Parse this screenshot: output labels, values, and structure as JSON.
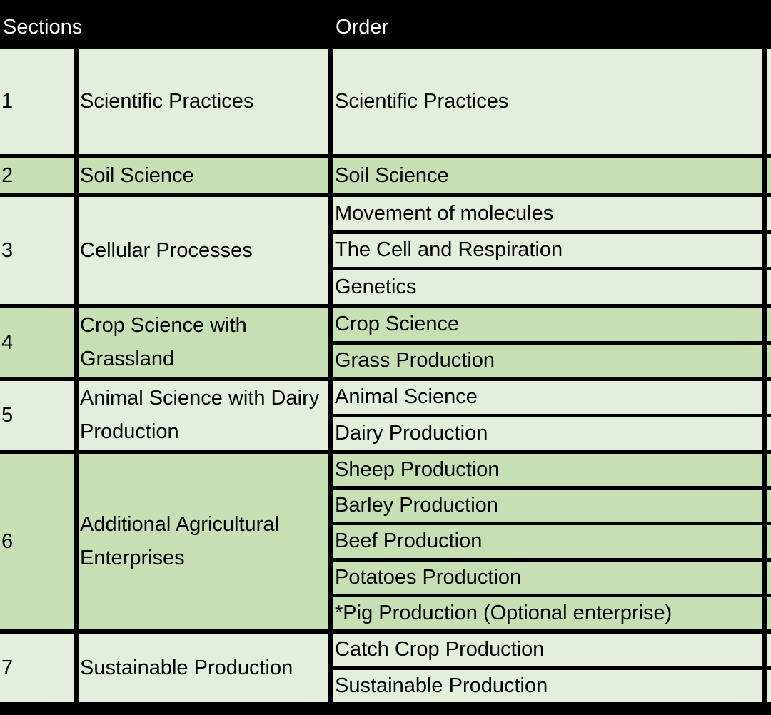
{
  "header": {
    "sections": "Sections",
    "order": "Order"
  },
  "rows": [
    {
      "num": "1",
      "section": "Scientific Practices",
      "items": [
        "Scientific Practices"
      ]
    },
    {
      "num": "2",
      "section": "Soil Science",
      "items": [
        "Soil Science"
      ]
    },
    {
      "num": "3",
      "section": "Cellular Processes",
      "items": [
        "Movement of molecules",
        "The Cell and Respiration",
        "Genetics"
      ]
    },
    {
      "num": "4",
      "section": "Crop Science with Grassland",
      "items": [
        "Crop Science",
        "Grass Production"
      ]
    },
    {
      "num": "5",
      "section": "Animal Science with Dairy Production",
      "items": [
        "Animal Science",
        "Dairy Production"
      ]
    },
    {
      "num": "6",
      "section": "Additional Agricultural Enterprises",
      "items": [
        "Sheep Production",
        "Barley Production",
        "Beef Production",
        "Potatoes Production",
        "*Pig Production (Optional enterprise)"
      ]
    },
    {
      "num": "7",
      "section": "Sustainable Production",
      "items": [
        "Catch Crop Production",
        "Sustainable Production"
      ]
    }
  ],
  "colors": {
    "light": "#e3efda",
    "dark": "#c6e0b4",
    "border": "#000000",
    "header_text": "#ffffff"
  }
}
